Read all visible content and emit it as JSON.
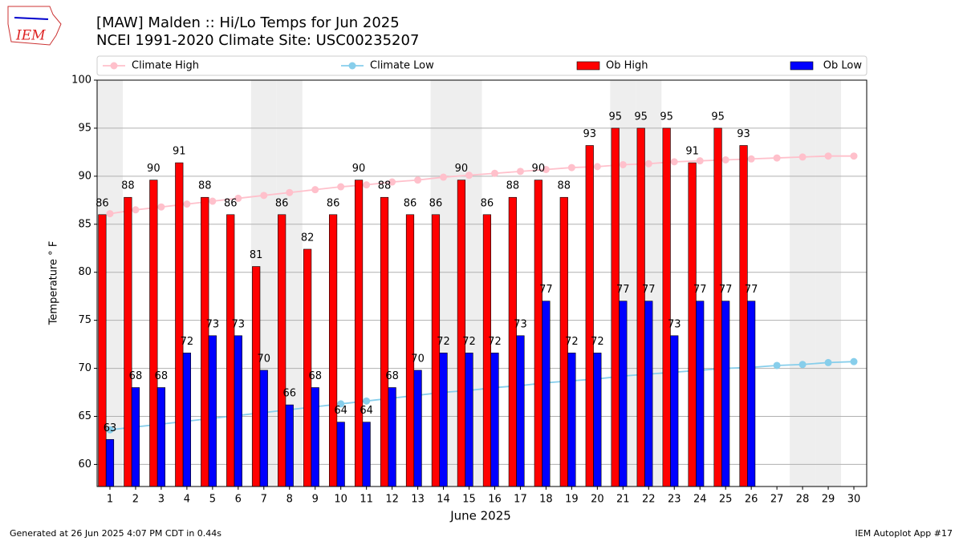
{
  "logo": "IEM",
  "chart_data": {
    "type": "bar",
    "title": "[MAW] Malden :: Hi/Lo Temps for Jun 2025",
    "subtitle": "NCEI 1991-2020 Climate Site: USC00235207",
    "x_label": "June 2025",
    "y_label": "Temperature ° F",
    "x": [
      1,
      2,
      3,
      4,
      5,
      6,
      7,
      8,
      9,
      10,
      11,
      12,
      13,
      14,
      15,
      16,
      17,
      18,
      19,
      20,
      21,
      22,
      23,
      24,
      25,
      26,
      27,
      28,
      29,
      30
    ],
    "xlim": [
      0.5,
      30.5
    ],
    "xticks": [
      1,
      2,
      3,
      4,
      5,
      6,
      7,
      8,
      9,
      10,
      11,
      12,
      13,
      14,
      15,
      16,
      17,
      18,
      19,
      20,
      21,
      22,
      23,
      24,
      25,
      26,
      27,
      28,
      29,
      30
    ],
    "ylim": [
      57.7,
      100
    ],
    "yticks": [
      60,
      65,
      70,
      75,
      80,
      85,
      90,
      95,
      100
    ],
    "grid": true,
    "legend": "top",
    "shaded_x": [
      1,
      7,
      8,
      14,
      15,
      21,
      22,
      28,
      29
    ],
    "series": [
      {
        "name": "Climate High",
        "type": "line",
        "color": "#ffc0cb",
        "values": [
          86.1,
          86.5,
          86.8,
          87.1,
          87.4,
          87.7,
          88.0,
          88.3,
          88.6,
          88.9,
          89.1,
          89.4,
          89.6,
          89.9,
          90.1,
          90.3,
          90.5,
          90.7,
          90.9,
          91.0,
          91.2,
          91.3,
          91.5,
          91.6,
          91.7,
          91.8,
          91.9,
          92.0,
          92.1,
          92.1
        ]
      },
      {
        "name": "Climate Low",
        "type": "line",
        "color": "#87ceeb",
        "values": [
          63.6,
          63.9,
          64.2,
          64.5,
          64.8,
          65.1,
          65.4,
          65.7,
          66.0,
          66.3,
          66.6,
          66.9,
          67.2,
          67.5,
          67.7,
          68.0,
          68.2,
          68.5,
          68.7,
          68.9,
          69.2,
          69.4,
          69.6,
          69.8,
          70.0,
          70.1,
          70.3,
          70.4,
          70.6,
          70.7
        ]
      },
      {
        "name": "Ob High",
        "type": "bar",
        "color": "#ff0000",
        "values": [
          86.0,
          87.8,
          89.6,
          91.4,
          87.8,
          86.0,
          80.6,
          86.0,
          82.4,
          86.0,
          89.6,
          87.8,
          86.0,
          86.0,
          89.6,
          86.0,
          87.8,
          89.6,
          87.8,
          93.2,
          95.0,
          95.0,
          95.0,
          91.4,
          95.0,
          93.2,
          null,
          null,
          null,
          null
        ],
        "value_labels": [
          "86",
          "88",
          "90",
          "91",
          "88",
          "86",
          "81",
          "86",
          "82",
          "86",
          "90",
          "88",
          "86",
          "86",
          "90",
          "86",
          "88",
          "90",
          "88",
          "93",
          "95",
          "95",
          "95",
          "91",
          "95",
          "93",
          null,
          null,
          null,
          null
        ]
      },
      {
        "name": "Ob Low",
        "type": "bar",
        "color": "#0000ff",
        "values": [
          62.6,
          68.0,
          68.0,
          71.6,
          73.4,
          73.4,
          69.8,
          66.2,
          68.0,
          64.4,
          64.4,
          68.0,
          69.8,
          71.6,
          71.6,
          71.6,
          73.4,
          77.0,
          71.6,
          71.6,
          77.0,
          77.0,
          73.4,
          77.0,
          77.0,
          77.0,
          null,
          null,
          null,
          null
        ],
        "value_labels": [
          "63",
          "68",
          "68",
          "72",
          "73",
          "73",
          "70",
          "66",
          "68",
          "64",
          "64",
          "68",
          "70",
          "72",
          "72",
          "72",
          "73",
          "77",
          "72",
          "72",
          "77",
          "77",
          "73",
          "77",
          "77",
          "77",
          null,
          null,
          null,
          null
        ]
      }
    ],
    "footer_left": "Generated at 26 Jun 2025 4:07 PM CDT in 0.44s",
    "footer_right": "IEM Autoplot App #17"
  }
}
